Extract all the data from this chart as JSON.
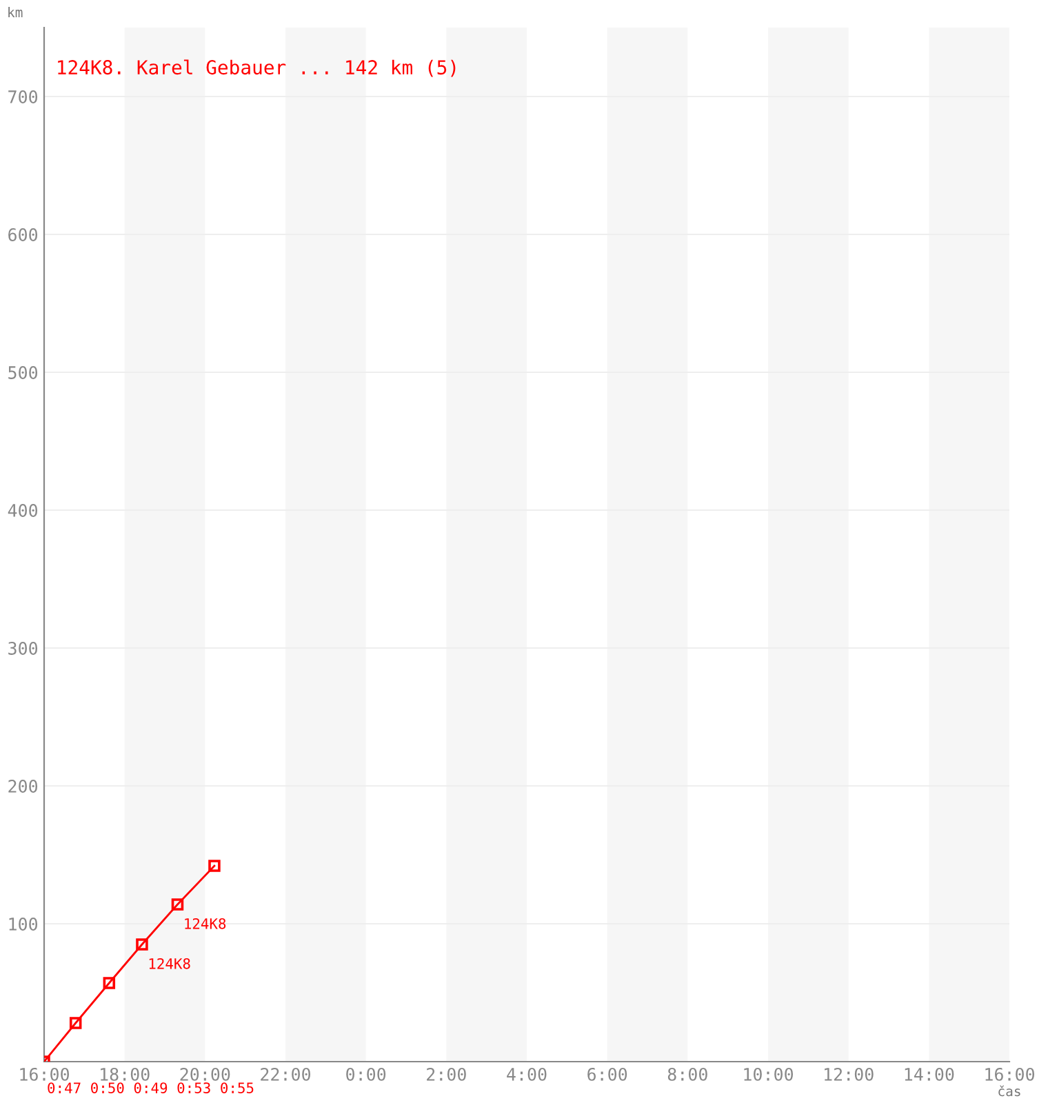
{
  "chart_data": {
    "type": "line",
    "title": "124K8. Karel Gebauer ... 142 km (5)",
    "xlabel": "čas",
    "ylabel": "km",
    "series": [
      {
        "color": "#ff0000",
        "x": [
          "2000-01-01T16:00",
          "2000-01-01T16:47",
          "2000-01-01T17:37",
          "2000-01-01T18:26",
          "2000-01-01T19:19",
          "2000-01-01T20:14"
        ],
        "values": [
          0,
          28,
          57,
          85,
          114,
          142
        ]
      }
    ],
    "annotations": [
      {
        "text": "124K8",
        "x": "2000-01-01T18:26",
        "y": 85
      },
      {
        "text": "124K8",
        "x": "2000-01-01T19:19",
        "y": 114
      },
      "0:47 0:50 0:49 0:53 0:55"
    ],
    "xlim": [
      "2000-01-01T16:00",
      "2000-01-02T16:00"
    ],
    "ylim": [
      0,
      750
    ],
    "xticks": [
      {
        "value": "2000-01-01T16:00",
        "label": "16:00"
      },
      {
        "value": "2000-01-01T18:00",
        "label": "18:00"
      },
      {
        "value": "2000-01-01T20:00",
        "label": "20:00"
      },
      {
        "value": "2000-01-01T22:00",
        "label": "22:00"
      },
      {
        "value": "2000-01-02T00:00",
        "label": "0:00"
      },
      {
        "value": "2000-01-02T02:00",
        "label": "2:00"
      },
      {
        "value": "2000-01-02T04:00",
        "label": "4:00"
      },
      {
        "value": "2000-01-02T06:00",
        "label": "6:00"
      },
      {
        "value": "2000-01-02T08:00",
        "label": "8:00"
      },
      {
        "value": "2000-01-02T10:00",
        "label": "10:00"
      },
      {
        "value": "2000-01-02T12:00",
        "label": "12:00"
      },
      {
        "value": "2000-01-02T14:00",
        "label": "14:00"
      },
      {
        "value": "2000-01-02T16:00",
        "label": "16:00"
      }
    ],
    "yticks": [
      100,
      200,
      300,
      400,
      500,
      600,
      700
    ],
    "bands": [
      {
        "axis": "x",
        "from": "2000-01-01T18:00",
        "to": "2000-01-01T20:00",
        "color": "#f6f6f6"
      },
      {
        "axis": "x",
        "from": "2000-01-01T22:00",
        "to": "2000-01-02T00:00",
        "color": "#f6f6f6"
      },
      {
        "axis": "x",
        "from": "2000-01-02T02:00",
        "to": "2000-01-02T04:00",
        "color": "#f6f6f6"
      },
      {
        "axis": "x",
        "from": "2000-01-02T06:00",
        "to": "2000-01-02T08:00",
        "color": "#f6f6f6"
      },
      {
        "axis": "x",
        "from": "2000-01-02T10:00",
        "to": "2000-01-02T12:00",
        "color": "#f6f6f6"
      },
      {
        "axis": "x",
        "from": "2000-01-02T14:00",
        "to": "2000-01-02T16:00",
        "color": "#f6f6f6"
      }
    ],
    "grid": "y",
    "marker": "square",
    "line_style": "solid",
    "legend": false
  }
}
